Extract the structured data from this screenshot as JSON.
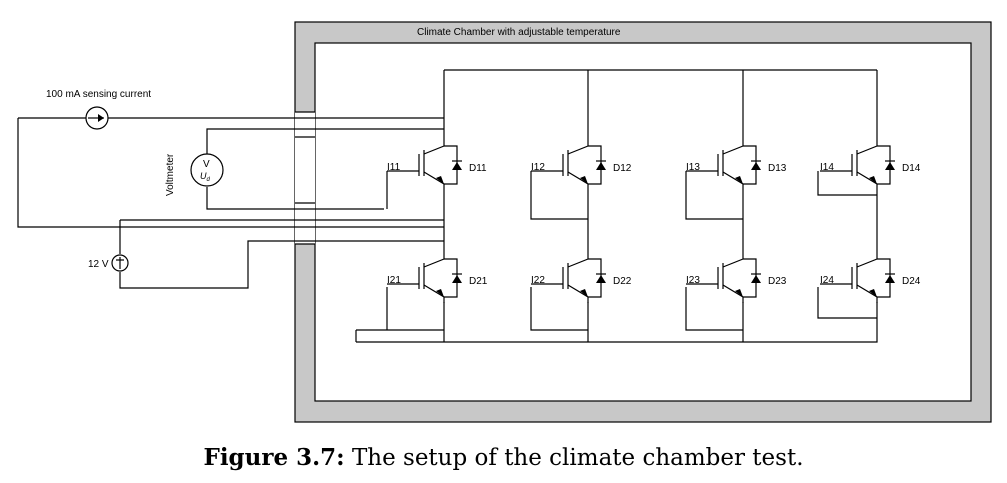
{
  "chamber": {
    "title": "Climate Chamber with adjustable temperature"
  },
  "source_current": {
    "label": "100 mA sensing current"
  },
  "voltmeter": {
    "label": "Voltmeter",
    "symbol": "V",
    "symbol_sub": "U",
    "symbol_subscript": "d"
  },
  "supply": {
    "label": "12 V"
  },
  "top_row": [
    {
      "igbt": "I11",
      "diode": "D11"
    },
    {
      "igbt": "I12",
      "diode": "D12"
    },
    {
      "igbt": "I13",
      "diode": "D13"
    },
    {
      "igbt": "I14",
      "diode": "D14"
    }
  ],
  "bottom_row": [
    {
      "igbt": "I21",
      "diode": "D21"
    },
    {
      "igbt": "I22",
      "diode": "D22"
    },
    {
      "igbt": "I23",
      "diode": "D23"
    },
    {
      "igbt": "I24",
      "diode": "D24"
    }
  ],
  "figure": {
    "label": "Figure 3.7:",
    "text": "The setup of the climate chamber test."
  }
}
